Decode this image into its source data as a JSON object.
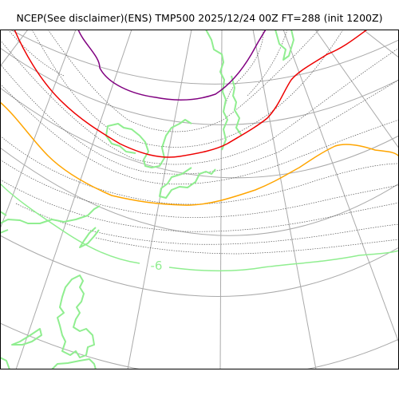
{
  "title": "NCEP(See disclaimer)(ENS) TMP500 2025/12/24 00Z FT=288 (init 1200Z)",
  "contour_label": "-6",
  "colors": {
    "frame": "#000000",
    "graticule": "#aaaaaa",
    "coastline": "#90ee90",
    "minor_contour": "#555555",
    "contour_purple": "#800080",
    "contour_red": "#ee0000",
    "contour_orange": "#ffa500",
    "contour_green": "#90ee90"
  }
}
